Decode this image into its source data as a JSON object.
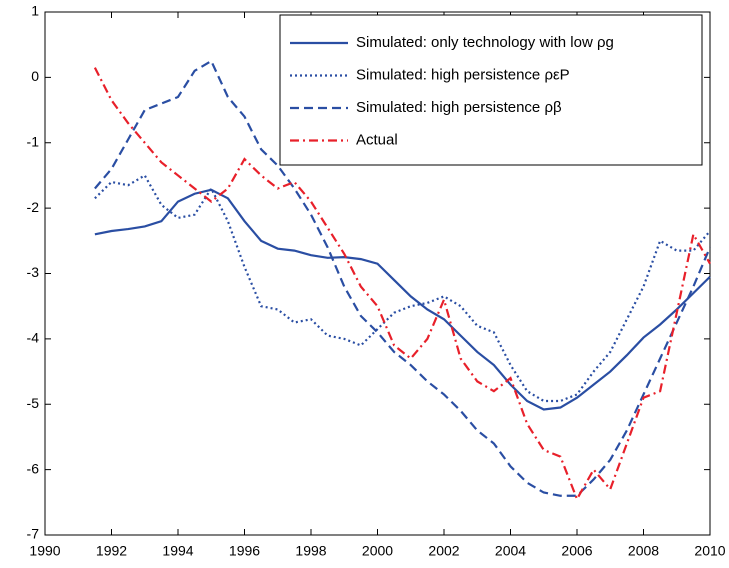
{
  "chart_data": {
    "type": "line",
    "x": [
      1991.5,
      1992,
      1992.5,
      1993,
      1993.5,
      1994,
      1994.5,
      1995,
      1995.5,
      1996,
      1996.5,
      1997,
      1997.5,
      1998,
      1998.5,
      1999,
      1999.5,
      2000,
      2000.5,
      2001,
      2001.5,
      2002,
      2002.5,
      2003,
      2003.5,
      2004,
      2004.5,
      2005,
      2005.5,
      2006,
      2006.5,
      2007,
      2007.5,
      2008,
      2008.5,
      2009,
      2009.5,
      2010
    ],
    "series": [
      {
        "name": "Simulated: only technology with low ρg",
        "color": "#2a4ea3",
        "style": "solid",
        "values": [
          -2.4,
          -2.35,
          -2.32,
          -2.28,
          -2.2,
          -1.9,
          -1.78,
          -1.72,
          -1.85,
          -2.2,
          -2.5,
          -2.62,
          -2.65,
          -2.72,
          -2.76,
          -2.75,
          -2.78,
          -2.85,
          -3.1,
          -3.35,
          -3.55,
          -3.7,
          -3.95,
          -4.2,
          -4.4,
          -4.7,
          -4.95,
          -5.08,
          -5.05,
          -4.9,
          -4.7,
          -4.5,
          -4.25,
          -3.98,
          -3.78,
          -3.55,
          -3.3,
          -3.05
        ]
      },
      {
        "name": "Simulated: high persistence ρεP",
        "color": "#2a4ea3",
        "style": "dotted",
        "values": [
          -1.85,
          -1.6,
          -1.65,
          -1.5,
          -1.95,
          -2.15,
          -2.1,
          -1.7,
          -2.2,
          -2.9,
          -3.5,
          -3.55,
          -3.75,
          -3.7,
          -3.95,
          -4.0,
          -4.1,
          -3.85,
          -3.6,
          -3.5,
          -3.45,
          -3.35,
          -3.5,
          -3.8,
          -3.9,
          -4.4,
          -4.8,
          -4.95,
          -4.95,
          -4.85,
          -4.5,
          -4.2,
          -3.7,
          -3.2,
          -2.5,
          -2.65,
          -2.65,
          -2.35
        ]
      },
      {
        "name": "Simulated: high persistence ρβ",
        "color": "#2a4ea3",
        "style": "dashed",
        "values": [
          -1.7,
          -1.4,
          -0.95,
          -0.5,
          -0.4,
          -0.3,
          0.1,
          0.25,
          -0.3,
          -0.6,
          -1.1,
          -1.35,
          -1.7,
          -2.1,
          -2.6,
          -3.2,
          -3.65,
          -3.9,
          -4.2,
          -4.4,
          -4.65,
          -4.85,
          -5.1,
          -5.4,
          -5.6,
          -5.95,
          -6.2,
          -6.35,
          -6.4,
          -6.4,
          -6.15,
          -5.85,
          -5.4,
          -4.85,
          -4.3,
          -3.75,
          -3.2,
          -2.6
        ]
      },
      {
        "name": "Actual",
        "color": "#e8202a",
        "style": "dashdot",
        "values": [
          0.15,
          -0.35,
          -0.7,
          -1.0,
          -1.3,
          -1.5,
          -1.7,
          -1.9,
          -1.7,
          -1.25,
          -1.5,
          -1.7,
          -1.6,
          -1.9,
          -2.3,
          -2.7,
          -3.2,
          -3.5,
          -4.1,
          -4.3,
          -4.0,
          -3.4,
          -4.3,
          -4.65,
          -4.8,
          -4.6,
          -5.3,
          -5.7,
          -5.8,
          -6.45,
          -6.0,
          -6.3,
          -5.6,
          -4.9,
          -4.8,
          -3.6,
          -2.4,
          -2.85
        ]
      }
    ],
    "xlim": [
      1990,
      2010
    ],
    "xticks": [
      1990,
      1992,
      1994,
      1996,
      1998,
      2000,
      2002,
      2004,
      2006,
      2008,
      2010
    ],
    "ylim": [
      -7,
      1
    ],
    "yticks": [
      -7,
      -6,
      -5,
      -4,
      -3,
      -2,
      -1,
      0,
      1
    ],
    "grid": false,
    "legend": "top-right"
  }
}
